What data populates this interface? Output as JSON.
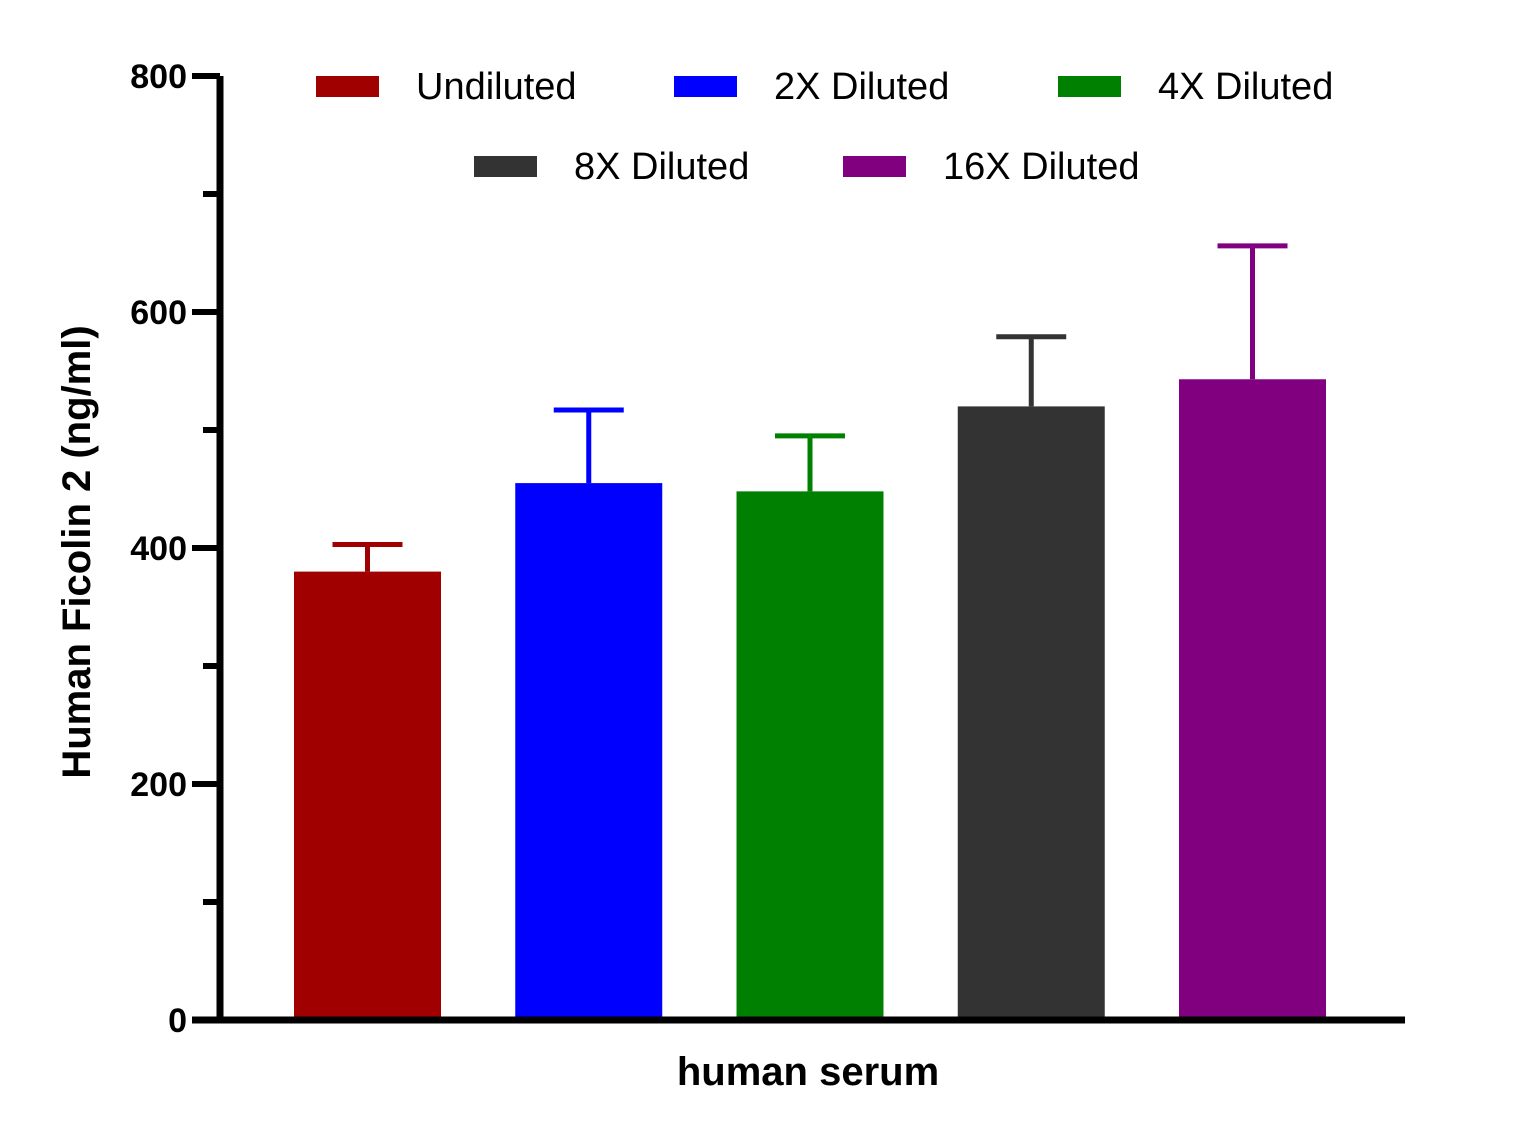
{
  "chart_data": {
    "type": "bar",
    "title": "",
    "xlabel": "human serum",
    "ylabel": "Human Ficolin 2 (ng/ml)",
    "ylim": [
      0,
      800
    ],
    "yticks": [
      0,
      200,
      400,
      600,
      800
    ],
    "y_minor_ticks": [
      100,
      300,
      500,
      700
    ],
    "grid": false,
    "legend_position": "top",
    "series": [
      {
        "name": "Undiluted",
        "value": 380,
        "error": 23,
        "color": "#A00000"
      },
      {
        "name": "2X Diluted",
        "value": 455,
        "error": 62,
        "color": "#0000FF"
      },
      {
        "name": "4X Diluted",
        "value": 448,
        "error": 47,
        "color": "#008000"
      },
      {
        "name": "8X Diluted",
        "value": 520,
        "error": 59,
        "color": "#333333"
      },
      {
        "name": "16X Diluted",
        "value": 543,
        "error": 113,
        "color": "#800080"
      }
    ]
  }
}
